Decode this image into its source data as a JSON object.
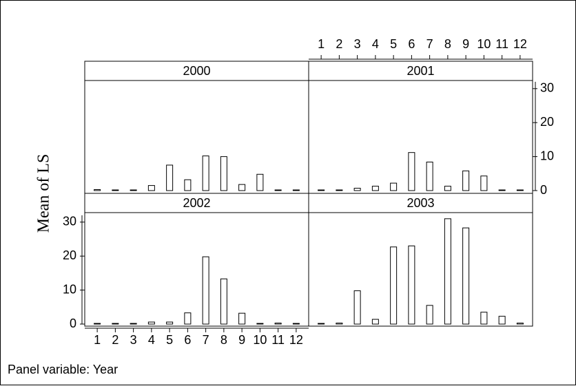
{
  "chart_data": {
    "type": "bar",
    "layout": "panel grid 2x2, shared axes",
    "panel_variable_note": "Panel variable: Year",
    "ylabel": "Mean of LS",
    "xlabel": "",
    "categories": [
      "1",
      "2",
      "3",
      "4",
      "5",
      "6",
      "7",
      "8",
      "9",
      "10",
      "11",
      "12"
    ],
    "ylim": [
      0,
      32
    ],
    "yticks": [
      0,
      10,
      20,
      30
    ],
    "grid": false,
    "legend": "none",
    "bar_fill": "#ffffff",
    "bar_stroke": "#000000",
    "panels": [
      {
        "name": "2000",
        "values": [
          0.3,
          0.1,
          0.1,
          1.5,
          7.5,
          3.2,
          10.2,
          10.0,
          1.8,
          4.8,
          0.1,
          0.1
        ]
      },
      {
        "name": "2001",
        "values": [
          0.1,
          0.1,
          0.7,
          1.3,
          2.2,
          11.2,
          8.4,
          1.3,
          5.8,
          4.3,
          0.1,
          0.1
        ]
      },
      {
        "name": "2002",
        "values": [
          0.1,
          0.1,
          0.1,
          0.6,
          0.6,
          3.3,
          19.8,
          13.3,
          3.2,
          0.1,
          0.3,
          0.1
        ]
      },
      {
        "name": "2003",
        "values": [
          0.1,
          0.3,
          9.8,
          1.4,
          22.7,
          23.0,
          5.5,
          31.0,
          28.3,
          3.5,
          2.3,
          0.3
        ]
      }
    ]
  }
}
